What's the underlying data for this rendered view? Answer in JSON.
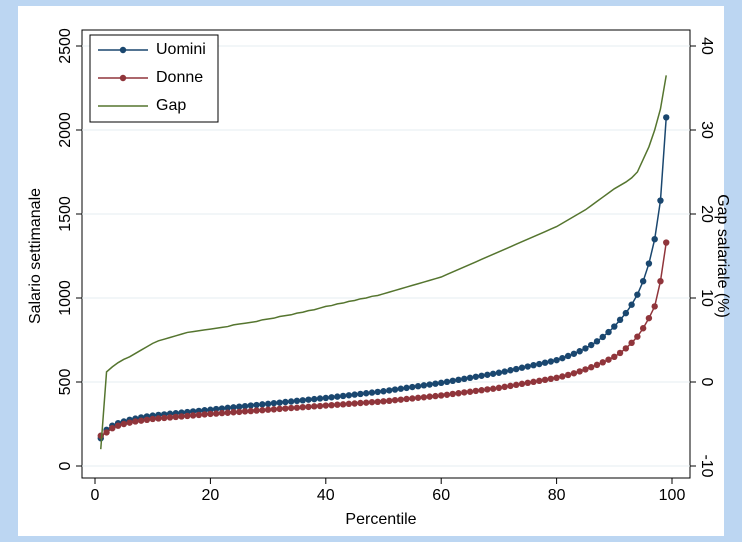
{
  "chart_data": {
    "type": "line",
    "xlabel": "Percentile",
    "ylabel": "Salario settimanale",
    "y2label": "Gap salariale (%)",
    "x": [
      1,
      2,
      3,
      4,
      5,
      6,
      7,
      8,
      9,
      10,
      11,
      12,
      13,
      14,
      15,
      16,
      17,
      18,
      19,
      20,
      21,
      22,
      23,
      24,
      25,
      26,
      27,
      28,
      29,
      30,
      31,
      32,
      33,
      34,
      35,
      36,
      37,
      38,
      39,
      40,
      41,
      42,
      43,
      44,
      45,
      46,
      47,
      48,
      49,
      50,
      51,
      52,
      53,
      54,
      55,
      56,
      57,
      58,
      59,
      60,
      61,
      62,
      63,
      64,
      65,
      66,
      67,
      68,
      69,
      70,
      71,
      72,
      73,
      74,
      75,
      76,
      77,
      78,
      79,
      80,
      81,
      82,
      83,
      84,
      85,
      86,
      87,
      88,
      89,
      90,
      91,
      92,
      93,
      94,
      95,
      96,
      97,
      98,
      99
    ],
    "series": [
      {
        "name": "Uomini",
        "color": "#1a476f",
        "markers": true,
        "values": [
          165,
          215,
          240,
          255,
          265,
          275,
          282,
          289,
          295,
          300,
          304,
          307,
          311,
          314,
          318,
          321,
          325,
          328,
          332,
          335,
          339,
          342,
          346,
          349,
          353,
          356,
          360,
          363,
          367,
          370,
          374,
          377,
          381,
          384,
          388,
          391,
          395,
          398,
          402,
          405,
          409,
          413,
          417,
          421,
          425,
          429,
          433,
          437,
          441,
          445,
          450,
          455,
          460,
          465,
          470,
          475,
          480,
          485,
          490,
          495,
          501,
          507,
          513,
          519,
          525,
          531,
          537,
          543,
          549,
          555,
          562,
          570,
          577,
          585,
          592,
          600,
          607,
          615,
          622,
          630,
          642,
          655,
          668,
          683,
          700,
          720,
          742,
          768,
          797,
          830,
          870,
          910,
          960,
          1020,
          1100,
          1205,
          1350,
          1580,
          2075
        ]
      },
      {
        "name": "Donne",
        "color": "#90353b",
        "markers": true,
        "values": [
          180,
          200,
          225,
          240,
          250,
          258,
          265,
          270,
          275,
          280,
          283,
          286,
          289,
          292,
          295,
          298,
          301,
          304,
          307,
          310,
          312,
          315,
          317,
          320,
          322,
          325,
          327,
          330,
          332,
          335,
          337,
          340,
          342,
          345,
          347,
          350,
          352,
          355,
          357,
          360,
          362,
          365,
          367,
          370,
          372,
          375,
          377,
          380,
          382,
          385,
          388,
          392,
          395,
          399,
          402,
          406,
          409,
          413,
          416,
          420,
          424,
          429,
          433,
          438,
          442,
          447,
          451,
          456,
          460,
          465,
          471,
          477,
          483,
          489,
          495,
          501,
          507,
          513,
          519,
          525,
          533,
          542,
          552,
          563,
          575,
          588,
          602,
          617,
          633,
          650,
          673,
          700,
          733,
          770,
          820,
          880,
          950,
          1100,
          1330
        ]
      },
      {
        "name": "Gap",
        "color": "#55752f",
        "markers": false,
        "axis": "y2",
        "values": [
          -8,
          1.2,
          1.8,
          2.3,
          2.7,
          3.0,
          3.4,
          3.8,
          4.2,
          4.6,
          4.9,
          5.1,
          5.3,
          5.5,
          5.7,
          5.9,
          6.0,
          6.1,
          6.2,
          6.3,
          6.4,
          6.5,
          6.6,
          6.8,
          6.9,
          7.0,
          7.1,
          7.2,
          7.4,
          7.5,
          7.6,
          7.8,
          7.9,
          8.0,
          8.2,
          8.3,
          8.5,
          8.6,
          8.8,
          9.0,
          9.1,
          9.3,
          9.4,
          9.6,
          9.7,
          9.9,
          10.0,
          10.2,
          10.3,
          10.5,
          10.7,
          10.9,
          11.1,
          11.3,
          11.5,
          11.7,
          11.9,
          12.1,
          12.3,
          12.5,
          12.8,
          13.1,
          13.4,
          13.7,
          14.0,
          14.3,
          14.6,
          14.9,
          15.2,
          15.5,
          15.8,
          16.1,
          16.4,
          16.7,
          17.0,
          17.3,
          17.6,
          17.9,
          18.2,
          18.5,
          18.9,
          19.3,
          19.7,
          20.1,
          20.5,
          21.0,
          21.5,
          22.0,
          22.5,
          23.0,
          23.4,
          23.8,
          24.3,
          25.0,
          26.5,
          28.0,
          30.0,
          32.5,
          36.5
        ]
      }
    ],
    "xlim": [
      0,
      100
    ],
    "xticks": [
      0,
      20,
      40,
      60,
      80,
      100
    ],
    "ylim": [
      0,
      2500
    ],
    "yticks": [
      0,
      500,
      1000,
      1500,
      2000,
      2500
    ],
    "y2lim": [
      -10,
      40
    ],
    "y2ticks": [
      -10,
      0,
      10,
      20,
      30,
      40
    ],
    "grid": true,
    "legend": "top-left"
  }
}
